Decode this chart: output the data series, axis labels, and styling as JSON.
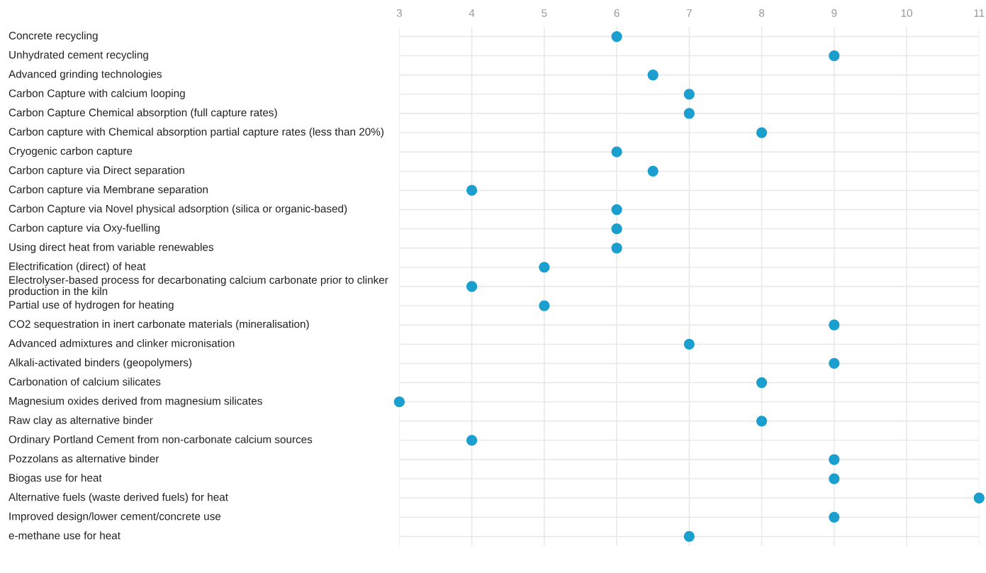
{
  "chart_data": {
    "type": "scatter",
    "orientation": "horizontal",
    "categories": [
      "Concrete recycling",
      "Unhydrated cement recycling",
      "Advanced grinding technologies",
      "Carbon Capture with calcium looping",
      "Carbon Capture Chemical absorption (full capture rates)",
      "Carbon capture with Chemical absorption partial capture rates (less than 20%)",
      "Cryogenic carbon capture",
      "Carbon capture via Direct separation",
      "Carbon capture via Membrane separation",
      "Carbon Capture via Novel physical adsorption (silica or organic-based)",
      "Carbon capture via Oxy-fuelling",
      "Using direct heat from variable renewables",
      "Electrification (direct) of heat",
      "Electrolyser-based process for decarbonating calcium carbonate prior to clinker production in the kiln",
      "Partial use of hydrogen for heating",
      "CO2 sequestration in inert carbonate materials (mineralisation)",
      "Advanced admixtures and clinker micronisation",
      "Alkali-activated binders (geopolymers)",
      "Carbonation of calcium silicates",
      "Magnesium oxides derived from magnesium silicates",
      "Raw clay as alternative binder",
      "Ordinary Portland Cement from non-carbonate calcium sources",
      "Pozzolans as alternative binder",
      "Biogas use for heat",
      "Alternative fuels (waste derived fuels) for heat",
      "Improved design/lower cement/concrete use",
      "e-methane use for heat"
    ],
    "series": [
      {
        "color": "#1a9fcf",
        "values": [
          6,
          9,
          6.5,
          7,
          7,
          8,
          6,
          6.5,
          4,
          6,
          6,
          6,
          5,
          4,
          5,
          9,
          7,
          9,
          8,
          3,
          8,
          4,
          9,
          9,
          11,
          9,
          7
        ]
      }
    ],
    "xlim": [
      3,
      11
    ],
    "xticks": [
      3,
      4,
      5,
      6,
      7,
      8,
      9,
      10,
      11
    ],
    "grid": true,
    "marker": "circle"
  }
}
